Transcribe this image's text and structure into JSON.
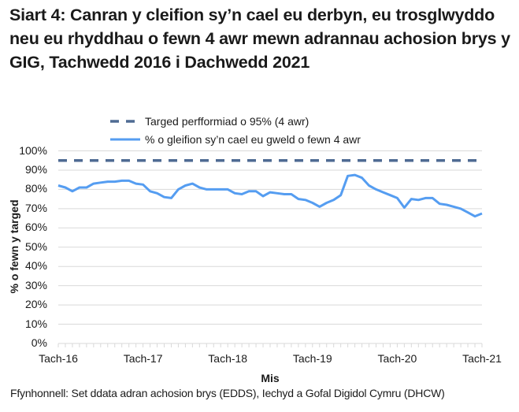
{
  "title": "Siart 4: Canran y cleifion sy’n cael eu derbyn, eu trosglwyddo neu eu rhyddhau o fewn 4 awr mewn adrannau achosion brys y GIG, Tachwedd 2016 i Dachwedd 2021",
  "legend": {
    "target_label": "Targed perfformiad o 95% (4 awr)",
    "series_label": "% o gleifion sy’n cael eu gweld o fewn 4 awr"
  },
  "axes": {
    "ylabel": "% o fewn y targed",
    "xlabel": "Mis",
    "yticks": [
      "100%",
      "90%",
      "80%",
      "70%",
      "60%",
      "50%",
      "40%",
      "30%",
      "20%",
      "10%",
      "0%"
    ],
    "xticks": [
      "Tach-16",
      "Tach-17",
      "Tach-18",
      "Tach-19",
      "Tach-20",
      "Tach-21"
    ]
  },
  "source": "Ffynhonnell: Set ddata adran achosion brys (EDDS), Iechyd a Gofal Digidol Cymru (DHCW)",
  "colors": {
    "series": "#559df1",
    "target": "#4f6b93",
    "grid": "#d9d9d9"
  },
  "chart_data": {
    "type": "line",
    "title": "Siart 4: Canran y cleifion sy’n cael eu derbyn, eu trosglwyddo neu eu rhyddhau o fewn 4 awr mewn adrannau achosion brys y GIG, Tachwedd 2016 i Dachwedd 2021",
    "xlabel": "Mis",
    "ylabel": "% o fewn y targed",
    "ylim": [
      0,
      100
    ],
    "grid": true,
    "legend_position": "top",
    "x": [
      "Tach-16",
      "Rhag-16",
      "Ion-17",
      "Chwe-17",
      "Maw-17",
      "Ebr-17",
      "Mai-17",
      "Meh-17",
      "Gor-17",
      "Aws-17",
      "Med-17",
      "Hyd-17",
      "Tach-17",
      "Rhag-17",
      "Ion-18",
      "Chwe-18",
      "Maw-18",
      "Ebr-18",
      "Mai-18",
      "Meh-18",
      "Gor-18",
      "Aws-18",
      "Med-18",
      "Hyd-18",
      "Tach-18",
      "Rhag-18",
      "Ion-19",
      "Chwe-19",
      "Maw-19",
      "Ebr-19",
      "Mai-19",
      "Meh-19",
      "Gor-19",
      "Aws-19",
      "Med-19",
      "Hyd-19",
      "Tach-19",
      "Rhag-19",
      "Ion-20",
      "Chwe-20",
      "Maw-20",
      "Ebr-20",
      "Mai-20",
      "Meh-20",
      "Gor-20",
      "Aws-20",
      "Med-20",
      "Hyd-20",
      "Tach-20",
      "Rhag-20",
      "Ion-21",
      "Chwe-21",
      "Maw-21",
      "Ebr-21",
      "Mai-21",
      "Meh-21",
      "Gor-21",
      "Aws-21",
      "Med-21",
      "Hyd-21",
      "Tach-21"
    ],
    "tick_labels": [
      "Tach-16",
      "Tach-17",
      "Tach-18",
      "Tach-19",
      "Tach-20",
      "Tach-21"
    ],
    "series": [
      {
        "name": "% o gleifion sy’n cael eu gweld o fewn 4 awr",
        "style": "solid",
        "values": [
          82,
          81,
          79,
          81,
          81,
          83,
          83.5,
          84,
          84,
          84.5,
          84.5,
          83,
          82.5,
          79,
          78,
          76,
          75.5,
          80,
          82,
          83,
          81,
          80,
          80,
          80,
          80,
          78,
          77.5,
          79,
          79,
          76.5,
          78.5,
          78,
          77.5,
          77.5,
          75,
          74.5,
          73,
          71,
          73,
          74.5,
          77,
          87,
          87.5,
          86,
          82,
          80,
          78.5,
          77,
          75.5,
          70.5,
          75,
          74.5,
          75.5,
          75.5,
          72.5,
          72,
          71,
          70,
          68,
          66,
          67.5
        ]
      },
      {
        "name": "Targed perfformiad o 95% (4 awr)",
        "style": "dashed",
        "values": [
          95,
          95,
          95,
          95,
          95,
          95,
          95,
          95,
          95,
          95,
          95,
          95,
          95,
          95,
          95,
          95,
          95,
          95,
          95,
          95,
          95,
          95,
          95,
          95,
          95,
          95,
          95,
          95,
          95,
          95,
          95,
          95,
          95,
          95,
          95,
          95,
          95,
          95,
          95,
          95,
          95,
          95,
          95,
          95,
          95,
          95,
          95,
          95,
          95,
          95,
          95,
          95,
          95,
          95,
          95,
          95,
          95,
          95,
          95,
          95,
          95
        ]
      }
    ]
  }
}
